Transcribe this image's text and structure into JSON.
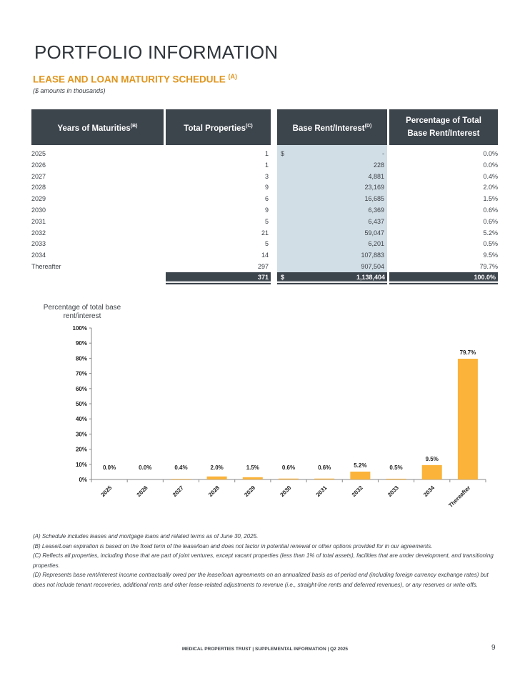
{
  "page_title": "PORTFOLIO INFORMATION",
  "section_title": "LEASE AND LOAN MATURITY SCHEDULE",
  "section_note_ref": "(A)",
  "amounts_note": "($ amounts in thousands)",
  "table": {
    "headers": [
      {
        "label": "Years of Maturities",
        "ref": "(B)"
      },
      {
        "label": "Total Properties",
        "ref": "(C)"
      },
      {
        "label": "Base Rent/Interest",
        "ref": "(D)"
      },
      {
        "label": "Percentage of Total Base Rent/Interest",
        "ref": ""
      }
    ],
    "currency": "$",
    "rows": [
      {
        "year": "2025",
        "props": "1",
        "rent": "-",
        "pct": "0.0%"
      },
      {
        "year": "2026",
        "props": "1",
        "rent": "228",
        "pct": "0.0%"
      },
      {
        "year": "2027",
        "props": "3",
        "rent": "4,881",
        "pct": "0.4%"
      },
      {
        "year": "2028",
        "props": "9",
        "rent": "23,169",
        "pct": "2.0%"
      },
      {
        "year": "2029",
        "props": "6",
        "rent": "16,685",
        "pct": "1.5%"
      },
      {
        "year": "2030",
        "props": "9",
        "rent": "6,369",
        "pct": "0.6%"
      },
      {
        "year": "2031",
        "props": "5",
        "rent": "6,437",
        "pct": "0.6%"
      },
      {
        "year": "2032",
        "props": "21",
        "rent": "59,047",
        "pct": "5.2%"
      },
      {
        "year": "2033",
        "props": "5",
        "rent": "6,201",
        "pct": "0.5%"
      },
      {
        "year": "2034",
        "props": "14",
        "rent": "107,883",
        "pct": "9.5%"
      },
      {
        "year": "Thereafter",
        "props": "297",
        "rent": "907,504",
        "pct": "79.7%"
      }
    ],
    "total": {
      "props": "371",
      "rent": "1,138,404",
      "pct": "100.0%"
    }
  },
  "chart_data": {
    "type": "bar",
    "ylabel": "Percentage of total base rent/interest",
    "categories": [
      "2025",
      "2026",
      "2027",
      "2028",
      "2029",
      "2030",
      "2031",
      "2032",
      "2033",
      "2034",
      "Thereafter"
    ],
    "values": [
      0.0,
      0.0,
      0.4,
      2.0,
      1.5,
      0.6,
      0.6,
      5.2,
      0.5,
      9.5,
      79.7
    ],
    "data_labels": [
      "0.0%",
      "0.0%",
      "0.4%",
      "2.0%",
      "1.5%",
      "0.6%",
      "0.6%",
      "5.2%",
      "0.5%",
      "9.5%",
      "79.7%"
    ],
    "ylim": [
      0,
      100
    ],
    "yticks": [
      "0%",
      "10%",
      "20%",
      "30%",
      "40%",
      "50%",
      "60%",
      "70%",
      "80%",
      "90%",
      "100%"
    ],
    "bar_color": "#fbb339",
    "grid": false
  },
  "footnotes": [
    "(A) Schedule includes leases and mortgage loans and related terms as of June 30, 2025.",
    "(B) Lease/Loan expiration is based on the fixed term of the lease/loan and does not factor in potential renewal or other options provided for in our agreements.",
    "(C) Reflects all properties, including those that are part of joint ventures, except vacant properties (less than 1% of total assets), facilities that are under development, and transitioning properties.",
    "(D) Represents base rent/interest income contractually owed per the lease/loan agreements on an annualized basis as of period end (including foreign currency exchange rates) but does not include tenant recoveries, additional rents and other lease-related adjustments to revenue (i.e., straight-line rents and deferred revenues), or any reserves or write-offs."
  ],
  "footer": "MEDICAL PROPERTIES TRUST | SUPPLEMENTAL INFORMATION | Q2 2025",
  "page_number": "9"
}
